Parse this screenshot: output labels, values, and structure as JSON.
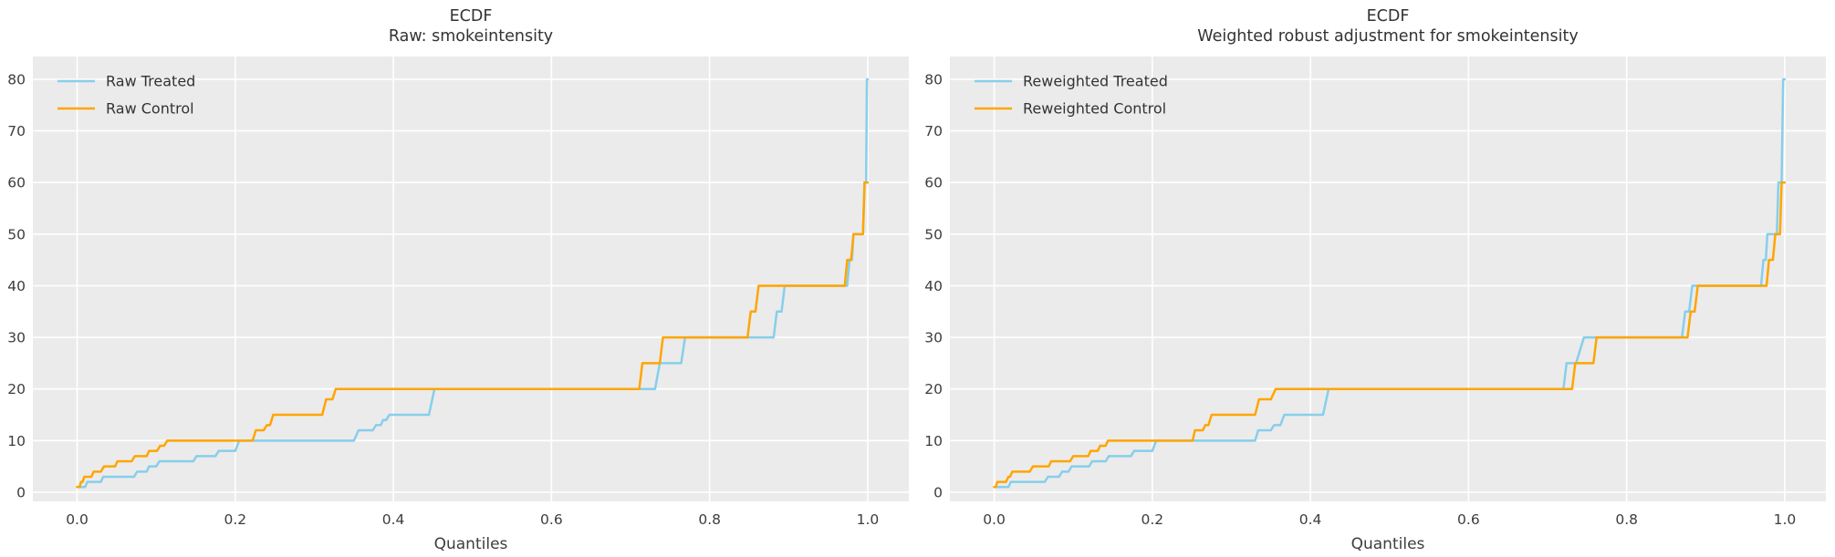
{
  "figure": {
    "background": "#ffffff",
    "axes_background": "#ebebeb",
    "grid_color": "#ffffff",
    "tick_color": "#3d3d3d",
    "title_color": "#333333"
  },
  "chart_data": [
    {
      "type": "line",
      "subtype": "quantile-step",
      "title_line1": "ECDF",
      "title_line2": "Raw: smokeintensity",
      "xlabel": "Quantiles",
      "ylabel": "",
      "xlim": [
        -0.056,
        1.052
      ],
      "ylim": [
        -1.77,
        84.41
      ],
      "xticks": [
        0.0,
        0.2,
        0.4,
        0.6,
        0.8,
        1.0
      ],
      "xtick_labels": [
        "0.0",
        "0.2",
        "0.4",
        "0.6",
        "0.8",
        "1.0"
      ],
      "yticks": [
        0,
        10,
        20,
        30,
        40,
        50,
        60,
        70,
        80
      ],
      "ytick_labels": [
        "0",
        "10",
        "20",
        "30",
        "40",
        "50",
        "60",
        "70",
        "80"
      ],
      "grid": true,
      "legend_position": "upper-left",
      "series": [
        {
          "name": "Raw Treated",
          "color": "#87CEEB",
          "points": [
            [
              0,
              1
            ],
            [
              0.01,
              1
            ],
            [
              0.013,
              2
            ],
            [
              0.03,
              2
            ],
            [
              0.033,
              3
            ],
            [
              0.072,
              3
            ],
            [
              0.076,
              4
            ],
            [
              0.088,
              4
            ],
            [
              0.091,
              5
            ],
            [
              0.1,
              5
            ],
            [
              0.104,
              6
            ],
            [
              0.147,
              6
            ],
            [
              0.151,
              7
            ],
            [
              0.175,
              7
            ],
            [
              0.179,
              8
            ],
            [
              0.2,
              8
            ],
            [
              0.205,
              10
            ],
            [
              0.35,
              10
            ],
            [
              0.356,
              12
            ],
            [
              0.374,
              12
            ],
            [
              0.378,
              13
            ],
            [
              0.384,
              13
            ],
            [
              0.387,
              14
            ],
            [
              0.391,
              14
            ],
            [
              0.395,
              15
            ],
            [
              0.445,
              15
            ],
            [
              0.452,
              20
            ],
            [
              0.731,
              20
            ],
            [
              0.737,
              25
            ],
            [
              0.764,
              25
            ],
            [
              0.769,
              30
            ],
            [
              0.881,
              30
            ],
            [
              0.885,
              35
            ],
            [
              0.891,
              35
            ],
            [
              0.895,
              40
            ],
            [
              0.974,
              40
            ],
            [
              0.977,
              45
            ],
            [
              0.98,
              45
            ],
            [
              0.982,
              50
            ],
            [
              0.994,
              50
            ],
            [
              0.996,
              60
            ],
            [
              0.998,
              60
            ],
            [
              0.999,
              80
            ],
            [
              1.0,
              80
            ]
          ]
        },
        {
          "name": "Raw Control",
          "color": "#FFA500",
          "points": [
            [
              0,
              1
            ],
            [
              0.003,
              1
            ],
            [
              0.005,
              2
            ],
            [
              0.007,
              2
            ],
            [
              0.009,
              3
            ],
            [
              0.018,
              3
            ],
            [
              0.021,
              4
            ],
            [
              0.03,
              4
            ],
            [
              0.034,
              5
            ],
            [
              0.048,
              5
            ],
            [
              0.051,
              6
            ],
            [
              0.069,
              6
            ],
            [
              0.073,
              7
            ],
            [
              0.088,
              7
            ],
            [
              0.091,
              8
            ],
            [
              0.101,
              8
            ],
            [
              0.105,
              9
            ],
            [
              0.11,
              9
            ],
            [
              0.114,
              10
            ],
            [
              0.222,
              10
            ],
            [
              0.226,
              12
            ],
            [
              0.236,
              12
            ],
            [
              0.24,
              13
            ],
            [
              0.244,
              13
            ],
            [
              0.248,
              15
            ],
            [
              0.31,
              15
            ],
            [
              0.315,
              18
            ],
            [
              0.323,
              18
            ],
            [
              0.327,
              20
            ],
            [
              0.711,
              20
            ],
            [
              0.715,
              25
            ],
            [
              0.737,
              25
            ],
            [
              0.741,
              30
            ],
            [
              0.848,
              30
            ],
            [
              0.852,
              35
            ],
            [
              0.858,
              35
            ],
            [
              0.862,
              40
            ],
            [
              0.971,
              40
            ],
            [
              0.974,
              45
            ],
            [
              0.979,
              45
            ],
            [
              0.982,
              50
            ],
            [
              0.994,
              50
            ],
            [
              0.996,
              60
            ],
            [
              1.0,
              60
            ]
          ]
        }
      ]
    },
    {
      "type": "line",
      "subtype": "quantile-step",
      "title_line1": "ECDF",
      "title_line2": "Weighted robust adjustment for smokeintensity",
      "xlabel": "Quantiles",
      "ylabel": "",
      "xlim": [
        -0.056,
        1.052
      ],
      "ylim": [
        -1.77,
        84.41
      ],
      "xticks": [
        0.0,
        0.2,
        0.4,
        0.6,
        0.8,
        1.0
      ],
      "xtick_labels": [
        "0.0",
        "0.2",
        "0.4",
        "0.6",
        "0.8",
        "1.0"
      ],
      "yticks": [
        0,
        10,
        20,
        30,
        40,
        50,
        60,
        70,
        80
      ],
      "ytick_labels": [
        "0",
        "10",
        "20",
        "30",
        "40",
        "50",
        "60",
        "70",
        "80"
      ],
      "grid": true,
      "legend_position": "upper-left",
      "series": [
        {
          "name": "Reweighted Treated",
          "color": "#87CEEB",
          "points": [
            [
              0,
              1
            ],
            [
              0.018,
              1
            ],
            [
              0.021,
              2
            ],
            [
              0.064,
              2
            ],
            [
              0.068,
              3
            ],
            [
              0.082,
              3
            ],
            [
              0.086,
              4
            ],
            [
              0.094,
              4
            ],
            [
              0.098,
              5
            ],
            [
              0.12,
              5
            ],
            [
              0.124,
              6
            ],
            [
              0.141,
              6
            ],
            [
              0.145,
              7
            ],
            [
              0.173,
              7
            ],
            [
              0.177,
              8
            ],
            [
              0.2,
              8
            ],
            [
              0.205,
              10
            ],
            [
              0.33,
              10
            ],
            [
              0.334,
              12
            ],
            [
              0.35,
              12
            ],
            [
              0.354,
              13
            ],
            [
              0.362,
              13
            ],
            [
              0.367,
              15
            ],
            [
              0.416,
              15
            ],
            [
              0.423,
              20
            ],
            [
              0.72,
              20
            ],
            [
              0.724,
              25
            ],
            [
              0.736,
              25
            ],
            [
              0.746,
              30
            ],
            [
              0.87,
              30
            ],
            [
              0.874,
              35
            ],
            [
              0.879,
              35
            ],
            [
              0.883,
              40
            ],
            [
              0.97,
              40
            ],
            [
              0.973,
              45
            ],
            [
              0.976,
              45
            ],
            [
              0.978,
              50
            ],
            [
              0.99,
              50
            ],
            [
              0.992,
              60
            ],
            [
              0.996,
              60
            ],
            [
              0.998,
              80
            ],
            [
              1.0,
              80
            ]
          ]
        },
        {
          "name": "Reweighted Control",
          "color": "#FFA500",
          "points": [
            [
              0,
              1
            ],
            [
              0.002,
              1
            ],
            [
              0.004,
              2
            ],
            [
              0.015,
              2
            ],
            [
              0.018,
              3
            ],
            [
              0.02,
              3
            ],
            [
              0.023,
              4
            ],
            [
              0.045,
              4
            ],
            [
              0.049,
              5
            ],
            [
              0.069,
              5
            ],
            [
              0.072,
              6
            ],
            [
              0.096,
              6
            ],
            [
              0.1,
              7
            ],
            [
              0.119,
              7
            ],
            [
              0.122,
              8
            ],
            [
              0.131,
              8
            ],
            [
              0.134,
              9
            ],
            [
              0.141,
              9
            ],
            [
              0.144,
              10
            ],
            [
              0.251,
              10
            ],
            [
              0.254,
              12
            ],
            [
              0.264,
              12
            ],
            [
              0.267,
              13
            ],
            [
              0.271,
              13
            ],
            [
              0.275,
              15
            ],
            [
              0.33,
              15
            ],
            [
              0.335,
              18
            ],
            [
              0.35,
              18
            ],
            [
              0.356,
              20
            ],
            [
              0.731,
              20
            ],
            [
              0.735,
              25
            ],
            [
              0.758,
              25
            ],
            [
              0.762,
              30
            ],
            [
              0.877,
              30
            ],
            [
              0.881,
              35
            ],
            [
              0.886,
              35
            ],
            [
              0.89,
              40
            ],
            [
              0.977,
              40
            ],
            [
              0.98,
              45
            ],
            [
              0.985,
              45
            ],
            [
              0.988,
              50
            ],
            [
              0.994,
              50
            ],
            [
              0.996,
              60
            ],
            [
              1.0,
              60
            ]
          ]
        }
      ]
    }
  ]
}
